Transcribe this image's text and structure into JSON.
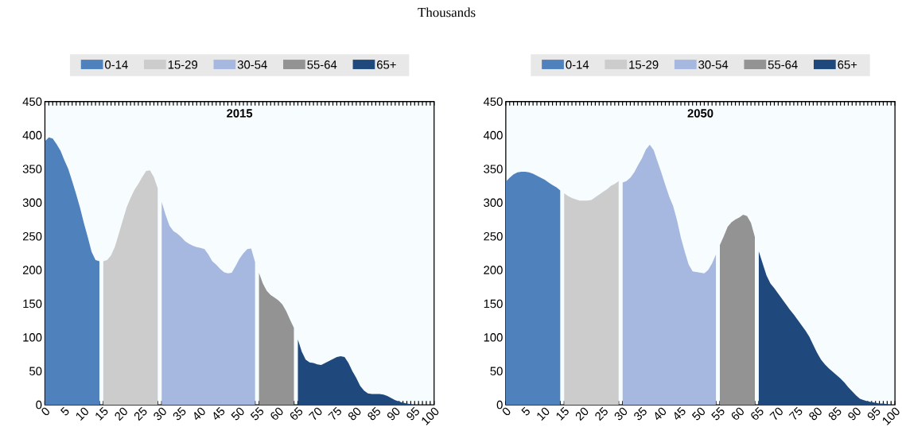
{
  "chart_data": [
    {
      "type": "area",
      "title": "2015",
      "annotations": [
        "Thousands"
      ],
      "xlim": [
        0,
        100
      ],
      "ylim": [
        0,
        450
      ],
      "xticks": [
        0,
        5,
        10,
        15,
        20,
        25,
        30,
        35,
        40,
        45,
        50,
        55,
        60,
        65,
        70,
        75,
        80,
        85,
        90,
        95,
        100
      ],
      "yticks": [
        0,
        50,
        100,
        150,
        200,
        250,
        300,
        350,
        400,
        450
      ],
      "legend": "top",
      "grid": false,
      "series": [
        {
          "name": "0-14",
          "color": "#4f81bd",
          "x": [
            0,
            1,
            2,
            3,
            4,
            5,
            6,
            7,
            8,
            9,
            10,
            11,
            12,
            13,
            14
          ],
          "values": [
            391,
            397,
            395,
            387,
            377,
            363,
            350,
            332,
            313,
            293,
            270,
            249,
            227,
            215,
            213
          ]
        },
        {
          "name": "15-29",
          "color": "#cccccc",
          "x": [
            15,
            16,
            17,
            18,
            19,
            20,
            21,
            22,
            23,
            24,
            25,
            26,
            27,
            28,
            29
          ],
          "values": [
            213,
            215,
            222,
            235,
            254,
            274,
            293,
            307,
            319,
            328,
            338,
            347,
            348,
            338,
            321
          ]
        },
        {
          "name": "30-54",
          "color": "#a7b8e0",
          "x": [
            30,
            31,
            32,
            33,
            34,
            35,
            36,
            37,
            38,
            39,
            40,
            41,
            42,
            43,
            44,
            45,
            46,
            47,
            48,
            49,
            50,
            51,
            52,
            53,
            54
          ],
          "values": [
            301,
            282,
            266,
            258,
            254,
            249,
            243,
            239,
            236,
            234,
            233,
            231,
            223,
            213,
            208,
            202,
            197,
            195,
            196,
            206,
            217,
            225,
            231,
            232,
            212
          ]
        },
        {
          "name": "55-64",
          "color": "#939393",
          "x": [
            55,
            56,
            57,
            58,
            59,
            60,
            61,
            62,
            63,
            64
          ],
          "values": [
            196,
            180,
            169,
            163,
            159,
            155,
            149,
            139,
            126,
            114
          ]
        },
        {
          "name": "65+",
          "color": "#1f497d",
          "x": [
            65,
            66,
            67,
            68,
            69,
            70,
            71,
            72,
            73,
            74,
            75,
            76,
            77,
            78,
            79,
            80,
            81,
            82,
            83,
            84,
            85,
            86,
            87,
            88,
            89,
            90,
            91,
            92,
            93,
            94,
            95,
            96,
            97,
            98,
            99,
            100
          ],
          "values": [
            97,
            79,
            67,
            63,
            62,
            60,
            59,
            62,
            65,
            68,
            71,
            72,
            71,
            62,
            50,
            40,
            28,
            21,
            17,
            16,
            16,
            16,
            15,
            13,
            10,
            7,
            5,
            3,
            2,
            1,
            0,
            0,
            0,
            0,
            0,
            0
          ]
        }
      ]
    },
    {
      "type": "area",
      "title": "2050",
      "xlim": [
        0,
        100
      ],
      "ylim": [
        0,
        450
      ],
      "xticks": [
        0,
        5,
        10,
        15,
        20,
        25,
        30,
        35,
        40,
        45,
        50,
        55,
        60,
        65,
        70,
        75,
        80,
        85,
        90,
        95,
        100
      ],
      "yticks": [
        0,
        50,
        100,
        150,
        200,
        250,
        300,
        350,
        400,
        450
      ],
      "legend": "top",
      "grid": false,
      "series": [
        {
          "name": "0-14",
          "color": "#4f81bd",
          "x": [
            0,
            1,
            2,
            3,
            4,
            5,
            6,
            7,
            8,
            9,
            10,
            11,
            12,
            13,
            14
          ],
          "values": [
            331,
            337,
            342,
            345,
            346,
            346,
            345,
            343,
            340,
            337,
            334,
            330,
            326,
            323,
            318
          ]
        },
        {
          "name": "15-29",
          "color": "#cccccc",
          "x": [
            15,
            16,
            17,
            18,
            19,
            20,
            21,
            22,
            23,
            24,
            25,
            26,
            27,
            28,
            29
          ],
          "values": [
            314,
            310,
            307,
            305,
            303,
            303,
            303,
            304,
            308,
            312,
            316,
            320,
            325,
            328,
            332
          ]
        },
        {
          "name": "30-54",
          "color": "#a7b8e0",
          "x": [
            30,
            31,
            32,
            33,
            34,
            35,
            36,
            37,
            38,
            39,
            40,
            41,
            42,
            43,
            44,
            45,
            46,
            47,
            48,
            49,
            50,
            51,
            52,
            53,
            54
          ],
          "values": [
            330,
            332,
            337,
            345,
            356,
            366,
            379,
            386,
            378,
            361,
            344,
            326,
            309,
            295,
            274,
            248,
            227,
            208,
            198,
            197,
            196,
            195,
            200,
            210,
            223
          ]
        },
        {
          "name": "55-64",
          "color": "#939393",
          "x": [
            55,
            56,
            57,
            58,
            59,
            60,
            61,
            62,
            63,
            64
          ],
          "values": [
            237,
            250,
            264,
            271,
            275,
            278,
            282,
            280,
            270,
            249
          ]
        },
        {
          "name": "65+",
          "color": "#1f497d",
          "x": [
            65,
            66,
            67,
            68,
            69,
            70,
            71,
            72,
            73,
            74,
            75,
            76,
            77,
            78,
            79,
            80,
            81,
            82,
            83,
            84,
            85,
            86,
            87,
            88,
            89,
            90,
            91,
            92,
            93,
            94,
            95,
            96,
            97,
            98,
            99,
            100
          ],
          "values": [
            228,
            210,
            192,
            180,
            173,
            165,
            157,
            149,
            141,
            134,
            126,
            118,
            110,
            101,
            89,
            77,
            67,
            60,
            54,
            49,
            44,
            39,
            33,
            26,
            20,
            14,
            9,
            7,
            5,
            4,
            3,
            2,
            2,
            1,
            0,
            0
          ]
        }
      ]
    }
  ]
}
